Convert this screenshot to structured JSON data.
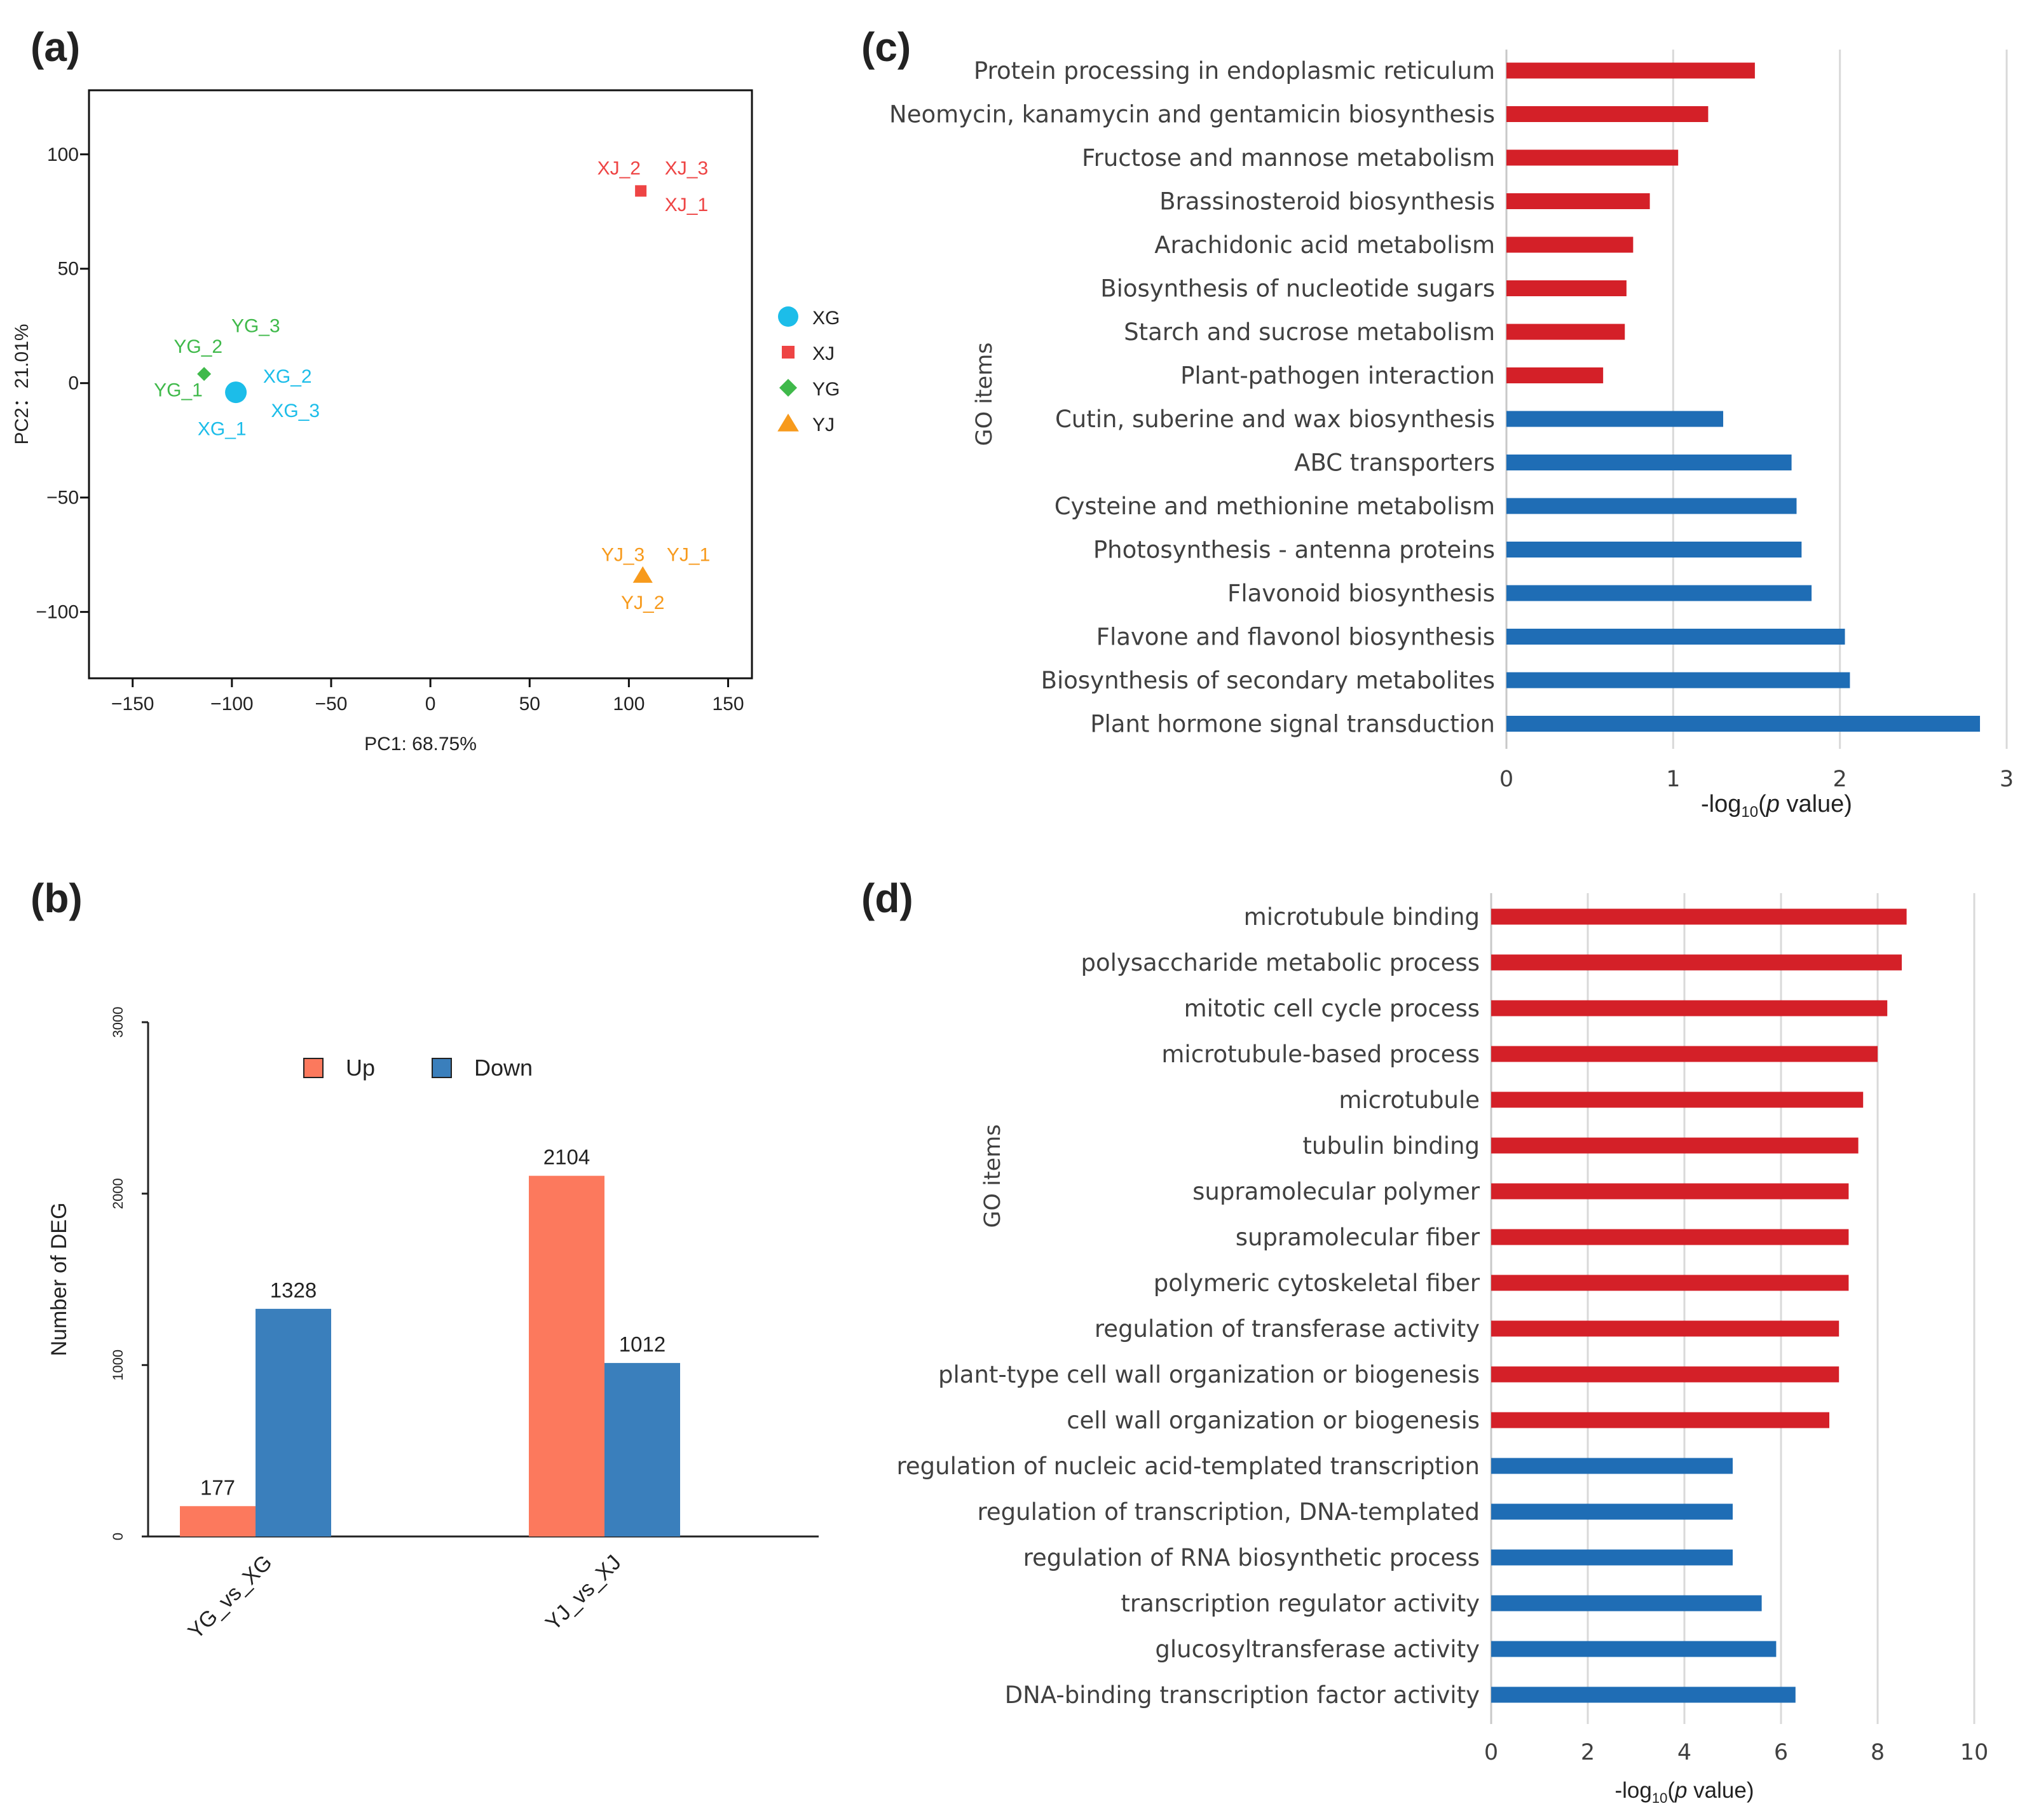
{
  "chart_data": [
    {
      "panel": "(a)",
      "type": "scatter",
      "xlabel": "PC1: 68.75%",
      "ylabel": "PC2：21.01%",
      "xlim": [
        -172,
        162
      ],
      "ylim": [
        -129,
        128
      ],
      "xticks": [
        "−150",
        "−100",
        "−50",
        "0",
        "50",
        "100",
        "150"
      ],
      "yticks": [
        "100",
        "50",
        "0",
        "−50",
        "−100"
      ],
      "xtick_values": [
        -150,
        -100,
        -50,
        0,
        50,
        100,
        150
      ],
      "ytick_values": [
        100,
        50,
        0,
        -50,
        -100
      ],
      "legend": [
        {
          "name": "XG",
          "color": "#1cbde9",
          "shape": "circle"
        },
        {
          "name": "XJ",
          "color": "#ee4444",
          "shape": "square"
        },
        {
          "name": "YG",
          "color": "#3fb94a",
          "shape": "diamond"
        },
        {
          "name": "YJ",
          "color": "#f79a1c",
          "shape": "triangle"
        }
      ],
      "points": [
        {
          "group": "XG",
          "x": -98,
          "y": -4
        },
        {
          "group": "XJ",
          "x": 106,
          "y": 84
        },
        {
          "group": "YG",
          "x": -114,
          "y": 4
        },
        {
          "group": "YJ",
          "x": 107,
          "y": -84
        }
      ],
      "point_labels": [
        {
          "text": "XJ_2",
          "group": "XJ",
          "x": 95,
          "y": 94
        },
        {
          "text": "XJ_3",
          "group": "XJ",
          "x": 129,
          "y": 94
        },
        {
          "text": "XJ_1",
          "group": "XJ",
          "x": 129,
          "y": 78
        },
        {
          "text": "YG_3",
          "group": "YG",
          "x": -88,
          "y": 25
        },
        {
          "text": "YG_2",
          "group": "YG",
          "x": -117,
          "y": 16
        },
        {
          "text": "YG_1",
          "group": "YG",
          "x": -127,
          "y": -3
        },
        {
          "text": "XG_2",
          "group": "XG",
          "x": -72,
          "y": 3
        },
        {
          "text": "XG_3",
          "group": "XG",
          "x": -68,
          "y": -12
        },
        {
          "text": "XG_1",
          "group": "XG",
          "x": -105,
          "y": -20
        },
        {
          "text": "YJ_3",
          "group": "YJ",
          "x": 97,
          "y": -75
        },
        {
          "text": "YJ_1",
          "group": "YJ",
          "x": 130,
          "y": -75
        },
        {
          "text": "YJ_2",
          "group": "YJ",
          "x": 107,
          "y": -96
        }
      ]
    },
    {
      "panel": "(b)",
      "type": "bar",
      "categories": [
        "YG_vs_XG",
        "YJ_vs_XJ"
      ],
      "series": [
        {
          "name": "Up",
          "color": "#fc795d",
          "values": [
            177,
            2104
          ]
        },
        {
          "name": "Down",
          "color": "#3a7fbc",
          "values": [
            1328,
            1012
          ]
        }
      ],
      "value_labels": [
        [
          "177",
          "1328"
        ],
        [
          "2104",
          "1012"
        ]
      ],
      "ylabel": "Number of DEG",
      "ylim": [
        0,
        3000
      ],
      "yticks": [
        "0",
        "1000",
        "2000",
        "3000"
      ],
      "ytick_values": [
        0,
        1000,
        2000,
        3000
      ]
    },
    {
      "panel": "(c)",
      "type": "bar",
      "orientation": "horizontal",
      "ylabel": "GO items",
      "xlabel_prefix": "-log",
      "xlabel_sub": "10",
      "xlabel_open": "(",
      "xlabel_italic": "p",
      "xlabel_rest": " value)",
      "xlim": [
        0,
        3
      ],
      "xticks": [
        "0",
        "1",
        "2",
        "3"
      ],
      "xtick_values": [
        0,
        1,
        2,
        3
      ],
      "up_color": "#d42028",
      "down_color": "#1f6db5",
      "items": [
        {
          "label": "Protein processing in endoplasmic reticulum",
          "value": 1.49,
          "dir": "up"
        },
        {
          "label": "Neomycin, kanamycin and gentamicin biosynthesis",
          "value": 1.21,
          "dir": "up"
        },
        {
          "label": "Fructose and mannose metabolism",
          "value": 1.03,
          "dir": "up"
        },
        {
          "label": "Brassinosteroid biosynthesis",
          "value": 0.86,
          "dir": "up"
        },
        {
          "label": "Arachidonic acid metabolism",
          "value": 0.76,
          "dir": "up"
        },
        {
          "label": "Biosynthesis of nucleotide sugars",
          "value": 0.72,
          "dir": "up"
        },
        {
          "label": "Starch and sucrose metabolism",
          "value": 0.71,
          "dir": "up"
        },
        {
          "label": "Plant-pathogen interaction",
          "value": 0.58,
          "dir": "up"
        },
        {
          "label": "Cutin, suberine and wax biosynthesis",
          "value": 1.3,
          "dir": "down"
        },
        {
          "label": "ABC transporters",
          "value": 1.71,
          "dir": "down"
        },
        {
          "label": "Cysteine and methionine metabolism",
          "value": 1.74,
          "dir": "down"
        },
        {
          "label": "Photosynthesis - antenna proteins",
          "value": 1.77,
          "dir": "down"
        },
        {
          "label": "Flavonoid biosynthesis",
          "value": 1.83,
          "dir": "down"
        },
        {
          "label": "Flavone and flavonol biosynthesis",
          "value": 2.03,
          "dir": "down"
        },
        {
          "label": "Biosynthesis of secondary metabolites",
          "value": 2.06,
          "dir": "down"
        },
        {
          "label": "Plant hormone signal transduction",
          "value": 2.84,
          "dir": "down"
        }
      ]
    },
    {
      "panel": "(d)",
      "type": "bar",
      "orientation": "horizontal",
      "ylabel": "GO items",
      "xlabel_prefix": "-log",
      "xlabel_sub": "10",
      "xlabel_open": "(",
      "xlabel_italic": "p",
      "xlabel_rest": " value)",
      "xlim": [
        0,
        10
      ],
      "xticks": [
        "0",
        "2",
        "4",
        "6",
        "8",
        "10"
      ],
      "xtick_values": [
        0,
        2,
        4,
        6,
        8,
        10
      ],
      "up_color": "#d42028",
      "down_color": "#1f6db5",
      "items": [
        {
          "label": "microtubule binding",
          "value": 8.6,
          "dir": "up"
        },
        {
          "label": "polysaccharide metabolic process",
          "value": 8.5,
          "dir": "up"
        },
        {
          "label": "mitotic cell cycle process",
          "value": 8.2,
          "dir": "up"
        },
        {
          "label": "microtubule-based process",
          "value": 8.0,
          "dir": "up"
        },
        {
          "label": "microtubule",
          "value": 7.7,
          "dir": "up"
        },
        {
          "label": "tubulin binding",
          "value": 7.6,
          "dir": "up"
        },
        {
          "label": "supramolecular polymer",
          "value": 7.4,
          "dir": "up"
        },
        {
          "label": "supramolecular fiber",
          "value": 7.4,
          "dir": "up"
        },
        {
          "label": "polymeric cytoskeletal fiber",
          "value": 7.4,
          "dir": "up"
        },
        {
          "label": "regulation of transferase activity",
          "value": 7.2,
          "dir": "up"
        },
        {
          "label": "plant-type cell wall organization or biogenesis",
          "value": 7.2,
          "dir": "up"
        },
        {
          "label": "cell wall organization or biogenesis",
          "value": 7.0,
          "dir": "up"
        },
        {
          "label": "regulation of nucleic acid-templated transcription",
          "value": 5.0,
          "dir": "down"
        },
        {
          "label": "regulation of transcription, DNA-templated",
          "value": 5.0,
          "dir": "down"
        },
        {
          "label": "regulation of RNA biosynthetic process",
          "value": 5.0,
          "dir": "down"
        },
        {
          "label": "transcription regulator activity",
          "value": 5.6,
          "dir": "down"
        },
        {
          "label": "glucosyltransferase activity",
          "value": 5.9,
          "dir": "down"
        },
        {
          "label": "DNA-binding transcription factor activity",
          "value": 6.3,
          "dir": "down"
        }
      ]
    }
  ]
}
